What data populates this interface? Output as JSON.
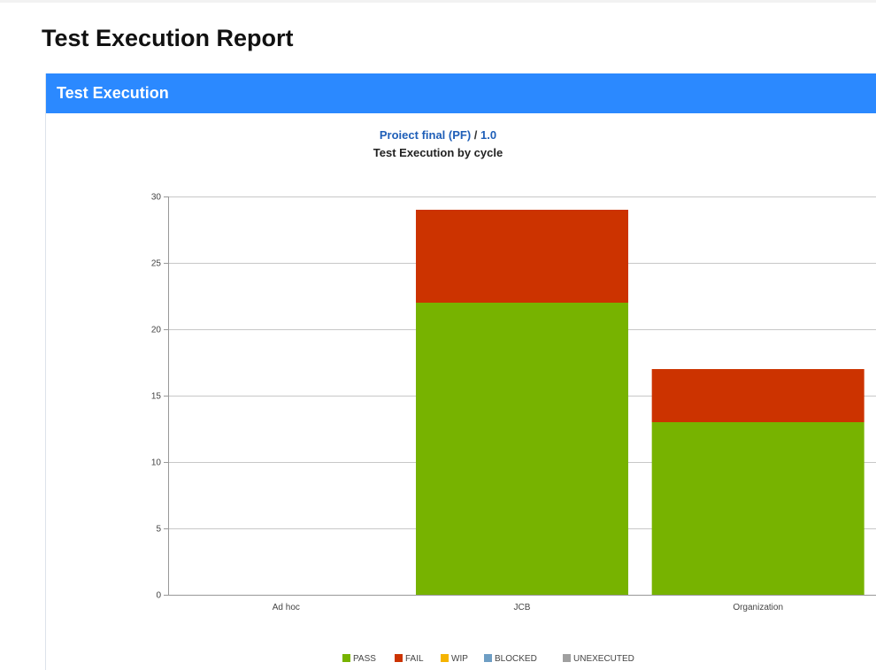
{
  "page": {
    "title": "Test Execution Report"
  },
  "panel": {
    "title": "Test Execution"
  },
  "chart_header": {
    "project_name": "Proiect final (PF)",
    "separator": " / ",
    "version": "1.0",
    "subtitle": "Test Execution by cycle"
  },
  "chart_data": {
    "type": "bar",
    "stacked": true,
    "categories": [
      "Ad hoc",
      "JCB",
      "Organization"
    ],
    "series": [
      {
        "name": "PASS",
        "color": "#77b300",
        "values": [
          0,
          22,
          13
        ]
      },
      {
        "name": "FAIL",
        "color": "#cc3300",
        "values": [
          0,
          7,
          4
        ]
      },
      {
        "name": "WIP",
        "color": "#f5b400",
        "values": [
          0,
          0,
          0
        ]
      },
      {
        "name": "BLOCKED",
        "color": "#6e9ec4",
        "values": [
          0,
          0,
          0
        ]
      },
      {
        "name": "UNEXECUTED",
        "color": "#a0a0a0",
        "values": [
          0,
          0,
          0
        ]
      }
    ],
    "ylim": [
      0,
      30
    ],
    "yticks": [
      0,
      5,
      10,
      15,
      20,
      25,
      30
    ],
    "grid": true,
    "legend_position": "bottom"
  }
}
